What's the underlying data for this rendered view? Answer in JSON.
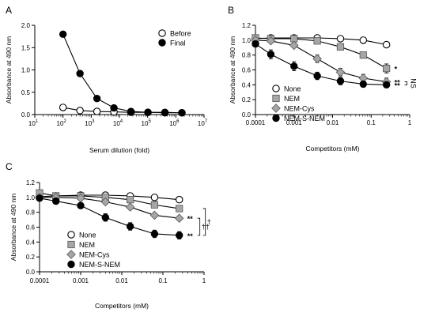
{
  "chart_data": [
    {
      "panel": "A",
      "type": "line",
      "xscale": "log",
      "xlabel": "Serum dilution (fold)",
      "ylabel": "Absorbance at 490 nm",
      "xlim": [
        10,
        10000000
      ],
      "ylim": [
        0,
        2.0
      ],
      "xticks": [
        10,
        100,
        1000,
        10000,
        100000,
        1000000,
        10000000
      ],
      "xtick_labels": [
        [
          "10",
          "1"
        ],
        [
          "10",
          "2"
        ],
        [
          "10",
          "3"
        ],
        [
          "10",
          "4"
        ],
        [
          "10",
          "5"
        ],
        [
          "10",
          "6"
        ],
        [
          "10",
          "7"
        ]
      ],
      "yticks": [
        0,
        0.5,
        1.0,
        1.5,
        2.0
      ],
      "ytick_labels": [
        "0.0",
        "0.5",
        "1.0",
        "1.5",
        "2.0"
      ],
      "legend_position": "top-right",
      "series": [
        {
          "name": "Before",
          "marker": "circle-open",
          "x": [
            100,
            400,
            1600,
            6400,
            25600,
            102400,
            409600,
            1638400
          ],
          "y": [
            0.16,
            0.09,
            0.07,
            0.06,
            0.05,
            0.05,
            0.04,
            0.04
          ]
        },
        {
          "name": "Final",
          "marker": "circle-filled",
          "x": [
            100,
            400,
            1600,
            6400,
            25600,
            102400,
            409600,
            1638400
          ],
          "y": [
            1.8,
            0.92,
            0.36,
            0.15,
            0.07,
            0.05,
            0.05,
            0.04
          ]
        }
      ]
    },
    {
      "panel": "B",
      "type": "line",
      "xscale": "log",
      "xlabel": "Competitors (mM)",
      "ylabel": "Absorbance at 490 nm",
      "xlim": [
        0.0001,
        1
      ],
      "ylim": [
        0,
        1.2
      ],
      "xticks": [
        0.0001,
        0.001,
        0.01,
        0.1,
        1
      ],
      "xtick_labels": [
        "0.0001",
        "0.001",
        "0.01",
        "0.1",
        "1"
      ],
      "yticks": [
        0,
        0.2,
        0.4,
        0.6,
        0.8,
        1.0,
        1.2
      ],
      "ytick_labels": [
        "0.0",
        "0.2",
        "0.4",
        "0.6",
        "0.8",
        "1.0",
        "1.2"
      ],
      "legend_position": "bottom-left",
      "series": [
        {
          "name": "None",
          "marker": "circle-open",
          "x": [
            0.0001,
            0.00025,
            0.001,
            0.004,
            0.016,
            0.0625,
            0.25
          ],
          "y": [
            1.02,
            1.03,
            1.03,
            1.03,
            1.02,
            1.0,
            0.94
          ],
          "err": [
            0.02,
            0.02,
            0.02,
            0.02,
            0.02,
            0.02,
            0.02
          ]
        },
        {
          "name": "NEM",
          "marker": "square",
          "x": [
            0.0001,
            0.00025,
            0.001,
            0.004,
            0.016,
            0.0625,
            0.25
          ],
          "y": [
            1.03,
            1.02,
            1.02,
            0.99,
            0.91,
            0.8,
            0.62
          ],
          "err": [
            0.02,
            0.02,
            0.02,
            0.03,
            0.04,
            0.04,
            0.06
          ]
        },
        {
          "name": "NEM-Cys",
          "marker": "diamond",
          "x": [
            0.0001,
            0.00025,
            0.001,
            0.004,
            0.016,
            0.0625,
            0.25
          ],
          "y": [
            1.0,
            0.99,
            0.93,
            0.75,
            0.57,
            0.49,
            0.44
          ],
          "err": [
            0.02,
            0.02,
            0.03,
            0.05,
            0.05,
            0.05,
            0.05
          ]
        },
        {
          "name": "NEM-S-NEM",
          "marker": "circle-filled",
          "x": [
            0.0001,
            0.00025,
            0.001,
            0.004,
            0.016,
            0.0625,
            0.25
          ],
          "y": [
            0.95,
            0.81,
            0.65,
            0.52,
            0.45,
            0.41,
            0.4
          ],
          "err": [
            0.04,
            0.06,
            0.06,
            0.05,
            0.05,
            0.04,
            0.04
          ]
        }
      ],
      "annotations": [
        {
          "text": "*",
          "series": "NEM"
        },
        {
          "text": "**",
          "series": "NEM-Cys"
        },
        {
          "text": "**",
          "series": "NEM-S-NEM"
        },
        {
          "text": "NS",
          "between": [
            "NEM-Cys",
            "NEM-S-NEM"
          ]
        }
      ]
    },
    {
      "panel": "C",
      "type": "line",
      "xscale": "log",
      "xlabel": "Competitors (mM)",
      "ylabel": "Absorbance at 490 nm",
      "xlim": [
        0.0001,
        1
      ],
      "ylim": [
        0,
        1.2
      ],
      "xticks": [
        0.0001,
        0.001,
        0.01,
        0.1,
        1
      ],
      "xtick_labels": [
        "0.0001",
        "0.001",
        "0.01",
        "0.1",
        "1"
      ],
      "yticks": [
        0,
        0.2,
        0.4,
        0.6,
        0.8,
        1.0,
        1.2
      ],
      "ytick_labels": [
        "0.0",
        "0.2",
        "0.4",
        "0.6",
        "0.8",
        "1.0",
        "1.2"
      ],
      "legend_position": "bottom-left",
      "series": [
        {
          "name": "None",
          "marker": "circle-open",
          "x": [
            0.0001,
            0.00025,
            0.001,
            0.004,
            0.016,
            0.0625,
            0.25
          ],
          "y": [
            1.01,
            1.02,
            1.03,
            1.03,
            1.02,
            1.0,
            0.97
          ],
          "err": [
            0.02,
            0.02,
            0.02,
            0.02,
            0.02,
            0.02,
            0.02
          ]
        },
        {
          "name": "NEM",
          "marker": "square",
          "x": [
            0.0001,
            0.00025,
            0.001,
            0.004,
            0.016,
            0.0625,
            0.25
          ],
          "y": [
            1.06,
            1.02,
            1.02,
            1.0,
            0.97,
            0.9,
            0.85
          ],
          "err": [
            0.02,
            0.02,
            0.02,
            0.02,
            0.02,
            0.03,
            0.03
          ]
        },
        {
          "name": "NEM-Cys",
          "marker": "diamond",
          "x": [
            0.0001,
            0.00025,
            0.001,
            0.004,
            0.016,
            0.0625,
            0.25
          ],
          "y": [
            1.0,
            1.0,
            0.99,
            0.94,
            0.87,
            0.76,
            0.72
          ],
          "err": [
            0.02,
            0.02,
            0.02,
            0.03,
            0.03,
            0.03,
            0.03
          ]
        },
        {
          "name": "NEM-S-NEM",
          "marker": "circle-filled",
          "x": [
            0.0001,
            0.00025,
            0.001,
            0.004,
            0.016,
            0.0625,
            0.25
          ],
          "y": [
            0.99,
            0.95,
            0.89,
            0.73,
            0.61,
            0.51,
            0.49
          ],
          "err": [
            0.03,
            0.04,
            0.04,
            0.05,
            0.05,
            0.05,
            0.05
          ]
        }
      ],
      "annotations": [
        {
          "text": "**",
          "series": "NEM-Cys"
        },
        {
          "text": "**",
          "series": "NEM-S-NEM"
        },
        {
          "text": "††",
          "between": [
            "NEM-Cys",
            "NEM-S-NEM"
          ]
        },
        {
          "text": "†",
          "between": [
            "NEM",
            "NEM-S-NEM"
          ]
        }
      ]
    }
  ]
}
